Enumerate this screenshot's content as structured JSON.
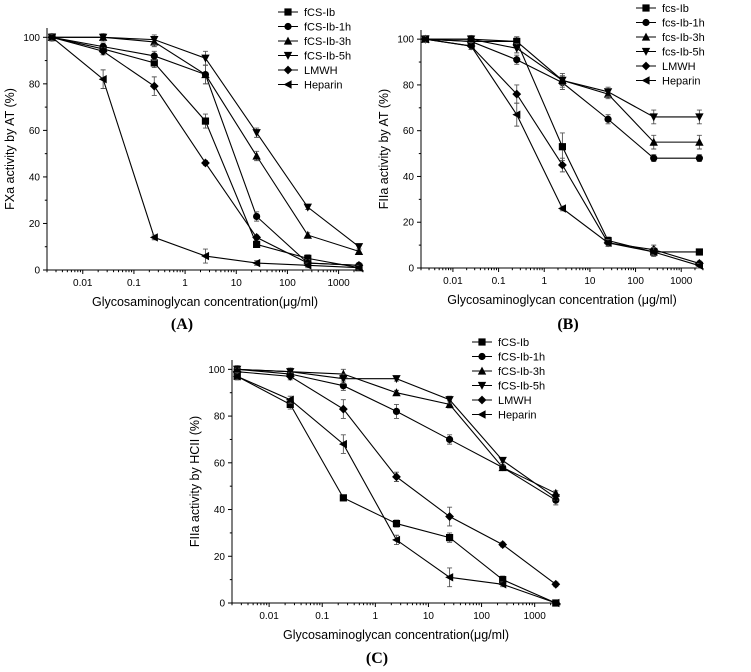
{
  "figure_tags": [
    "(A)",
    "(B)",
    "(C)"
  ],
  "chart_data": [
    {
      "type": "line",
      "tag": "(A)",
      "xlabel": "Glycosaminoglycan concentration(μg/ml)",
      "ylabel": "FXa activity by AT (%)",
      "x_scale": "log",
      "xlim": [
        0.002,
        3000
      ],
      "ylim": [
        0,
        104
      ],
      "x_ticks": [
        0.01,
        0.1,
        1,
        10,
        100,
        1000
      ],
      "x_tick_labels": [
        "0.01",
        "0.1",
        "1",
        "10",
        "100",
        "1000"
      ],
      "y_ticks": [
        0,
        20,
        40,
        60,
        80,
        100
      ],
      "x": [
        0.0025,
        0.025,
        0.25,
        2.5,
        25,
        250,
        2500
      ],
      "series": [
        {
          "name": "fCS-Ib",
          "marker": "square",
          "values": [
            100,
            95,
            89,
            64,
            11,
            5,
            1
          ],
          "err": [
            1.5,
            1.5,
            2,
            3,
            1,
            1.5,
            1
          ]
        },
        {
          "name": "fCS-Ib-1h",
          "marker": "circle",
          "values": [
            100,
            96,
            92,
            84,
            23,
            3,
            2
          ],
          "err": [
            1.5,
            1.5,
            2,
            4,
            2,
            1.5,
            1
          ]
        },
        {
          "name": "fCS-Ib-3h",
          "marker": "triangle-up",
          "values": [
            100,
            100,
            98,
            84,
            49,
            15,
            8
          ],
          "err": [
            1.5,
            1.5,
            2,
            4,
            2,
            1,
            1
          ]
        },
        {
          "name": "fCS-Ib-5h",
          "marker": "triangle-down",
          "values": [
            100,
            100,
            99,
            91,
            59,
            27,
            10
          ],
          "err": [
            1.5,
            1.5,
            2,
            3,
            2,
            1,
            1
          ]
        },
        {
          "name": "LMWH",
          "marker": "diamond",
          "values": [
            100,
            94,
            79,
            46,
            14,
            3,
            2
          ],
          "err": [
            1.5,
            1.5,
            4,
            1,
            1,
            1,
            1
          ]
        },
        {
          "name": "Heparin",
          "marker": "triangle-left",
          "values": [
            100,
            82,
            14,
            6,
            3,
            2,
            1
          ],
          "err": [
            1.5,
            4,
            1,
            3,
            1,
            1,
            1
          ]
        }
      ]
    },
    {
      "type": "line",
      "tag": "(B)",
      "xlabel": "Glycosaminoglycan concentration (μg/ml)",
      "ylabel": "FIIa activity by AT (%)",
      "x_scale": "log",
      "xlim": [
        0.002,
        3000
      ],
      "ylim": [
        0,
        104
      ],
      "x_ticks": [
        0.01,
        0.1,
        1,
        10,
        100,
        1000
      ],
      "x_tick_labels": [
        "0.01",
        "0.1",
        "1",
        "10",
        "100",
        "1000"
      ],
      "y_ticks": [
        0,
        20,
        40,
        60,
        80,
        100
      ],
      "x": [
        0.0025,
        0.025,
        0.25,
        2.5,
        25,
        250,
        2500
      ],
      "series": [
        {
          "name": "fcs-Ib",
          "marker": "square",
          "values": [
            100,
            99,
            99,
            53,
            12,
            7,
            7
          ],
          "err": [
            1.5,
            1.5,
            2,
            6,
            1.5,
            1.5,
            1
          ]
        },
        {
          "name": "fcs-Ib-1h",
          "marker": "circle",
          "values": [
            100,
            99,
            91,
            81,
            65,
            48,
            48
          ],
          "err": [
            1.5,
            1.5,
            2,
            3,
            2,
            1.5,
            1.5
          ]
        },
        {
          "name": "fcs-Ib-3h",
          "marker": "triangle-up",
          "values": [
            100,
            100,
            99,
            82,
            76,
            55,
            55
          ],
          "err": [
            1.5,
            1.5,
            2,
            3,
            2,
            3,
            3
          ]
        },
        {
          "name": "fcs-Ib-5h",
          "marker": "triangle-down",
          "values": [
            100,
            100,
            96,
            82,
            77,
            66,
            66
          ],
          "err": [
            1.5,
            1.5,
            2,
            2,
            2,
            3,
            3
          ]
        },
        {
          "name": "LMWH",
          "marker": "diamond",
          "values": [
            100,
            97,
            76,
            45,
            11,
            8,
            2
          ],
          "err": [
            1.5,
            1.5,
            4,
            3,
            1.5,
            2,
            1
          ]
        },
        {
          "name": "Heparin",
          "marker": "triangle-left",
          "values": [
            100,
            97,
            67,
            26,
            11,
            7,
            1
          ],
          "err": [
            1.5,
            1.5,
            5,
            1,
            1.5,
            2,
            1
          ]
        }
      ]
    },
    {
      "type": "line",
      "tag": "(C)",
      "xlabel": "Glycosaminoglycan concentration(μg/ml)",
      "ylabel": "FIIa activity by HCII (%)",
      "x_scale": "log",
      "xlim": [
        0.002,
        3000
      ],
      "ylim": [
        0,
        104
      ],
      "x_ticks": [
        0.01,
        0.1,
        1,
        10,
        100,
        1000
      ],
      "x_tick_labels": [
        "0.01",
        "0.1",
        "1",
        "10",
        "100",
        "1000"
      ],
      "y_ticks": [
        0,
        20,
        40,
        60,
        80,
        100
      ],
      "x": [
        0.0025,
        0.025,
        0.25,
        2.5,
        25,
        250,
        2500
      ],
      "series": [
        {
          "name": "fCS-Ib",
          "marker": "square",
          "values": [
            97,
            85,
            45,
            34,
            28,
            10,
            0
          ],
          "err": [
            1.5,
            2,
            1,
            1.5,
            2,
            1.5,
            0.5
          ]
        },
        {
          "name": "fCS-Ib-1h",
          "marker": "circle",
          "values": [
            100,
            98,
            93,
            82,
            70,
            58,
            44
          ],
          "err": [
            1.5,
            1.5,
            2,
            3,
            2,
            1,
            2
          ]
        },
        {
          "name": "fCS-Ib-3h",
          "marker": "triangle-up",
          "values": [
            100,
            99,
            98,
            90,
            85,
            58,
            47
          ],
          "err": [
            1.5,
            1.5,
            2,
            1,
            1.5,
            1,
            1
          ]
        },
        {
          "name": "fCS-Ib-5h",
          "marker": "triangle-down",
          "values": [
            100,
            99,
            96,
            96,
            87,
            61,
            45
          ],
          "err": [
            1.5,
            1.5,
            2,
            1,
            1.5,
            1,
            1
          ]
        },
        {
          "name": "LMWH",
          "marker": "diamond",
          "values": [
            99,
            97,
            83,
            54,
            37,
            25,
            8
          ],
          "err": [
            1.5,
            1.5,
            4,
            2,
            4,
            1,
            1
          ]
        },
        {
          "name": "Heparin",
          "marker": "triangle-left",
          "values": [
            97,
            87,
            68,
            27,
            11,
            8,
            0
          ],
          "err": [
            1.5,
            1.5,
            4,
            2,
            4,
            1,
            0.5
          ]
        }
      ]
    }
  ]
}
